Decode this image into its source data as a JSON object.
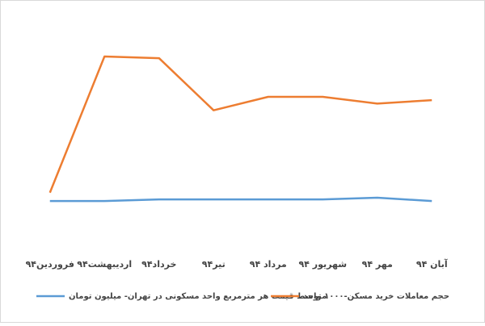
{
  "chart_data": {
    "type": "line",
    "categories": [
      "فروردین۹۴",
      "اردیبهشت۹۴",
      "خرداد۹۴",
      "تیر۹۴",
      "مرداد ۹۴",
      "شهریور ۹۴",
      "مهر ۹۴",
      "آبان ۹۴"
    ],
    "series": [
      {
        "name": "متوسط قیمت هر مترمربع واحد مسکونی در تهران- میلیون تومان",
        "color": "#5b9bd5",
        "values": [
          2.2,
          2.2,
          2.3,
          2.3,
          2.3,
          2.3,
          2.4,
          2.2
        ]
      },
      {
        "name": "حجم معاملات خرید مسکن-۱۰۰۰ واحد",
        "color": "#ed7d31",
        "values": [
          2.7,
          10.8,
          10.7,
          7.6,
          8.4,
          8.4,
          8.0,
          8.2
        ]
      }
    ],
    "ylim": [
      0,
      12
    ]
  }
}
